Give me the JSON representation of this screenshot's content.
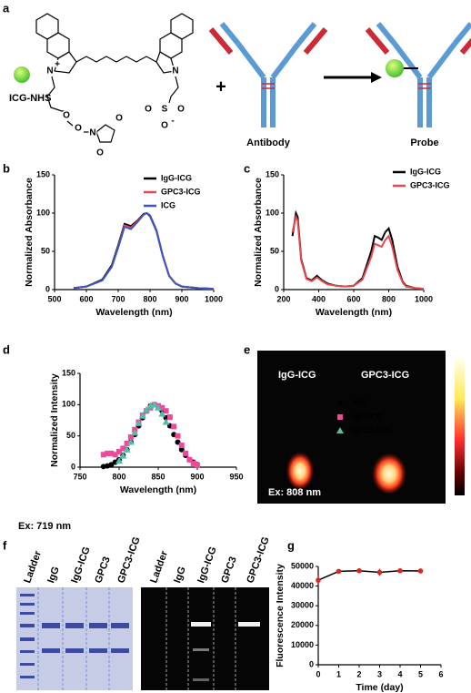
{
  "panel_labels": [
    "a",
    "b",
    "c",
    "d",
    "e",
    "f",
    "g"
  ],
  "scheme": {
    "reagent": "ICG-NHS",
    "plus": "+",
    "antibody": "Antibody",
    "probe": "Probe",
    "atoms": [
      "N",
      "+",
      "N",
      "O",
      "O",
      "N",
      "O",
      "O",
      "S",
      "O",
      "O",
      "O",
      "-"
    ]
  },
  "excitation_d": "Ex: 719 nm",
  "imaging": {
    "labels": [
      "IgG-ICG",
      "GPC3-ICG"
    ],
    "excitation": "Ex: 808 nm"
  },
  "gels": {
    "lanes_stain": [
      "Ladder",
      "IgG",
      "IgG-ICG",
      "GPC3",
      "GPC3-ICG"
    ],
    "lanes_fluor": [
      "Ladder",
      "IgG",
      "IgG-ICG",
      "GPC3",
      "GPC3-ICG"
    ]
  },
  "chart_data": [
    {
      "type": "line",
      "xlabel": "Wavelength (nm)",
      "ylabel": "Normalized Absorbance",
      "x": [
        560,
        600,
        650,
        680,
        700,
        720,
        740,
        760,
        780,
        790,
        800,
        820,
        840,
        860,
        880,
        900,
        950,
        1000
      ],
      "series": [
        {
          "name": "IgG-ICG",
          "color": "#000000",
          "values": [
            2,
            4,
            13,
            32,
            58,
            86,
            83,
            90,
            99,
            100,
            96,
            77,
            44,
            18,
            8,
            4,
            2,
            1
          ]
        },
        {
          "name": "GPC3-ICG",
          "color": "#e8474c",
          "values": [
            2,
            4,
            12,
            30,
            56,
            84,
            81,
            89,
            98,
            100,
            97,
            78,
            45,
            18,
            8,
            4,
            2,
            1
          ]
        },
        {
          "name": "ICG",
          "color": "#3a57c4",
          "values": [
            2,
            4,
            12,
            30,
            55,
            82,
            79,
            88,
            98,
            100,
            97,
            78,
            44,
            18,
            8,
            4,
            2,
            1
          ]
        }
      ],
      "xlim": [
        500,
        1000
      ],
      "xticks": [
        500,
        600,
        700,
        800,
        900,
        1000
      ],
      "ylim": [
        0,
        150
      ],
      "yticks": [
        0,
        50,
        100,
        150
      ]
    },
    {
      "type": "line",
      "xlabel": "Wavelength (nm)",
      "ylabel": "Normalized Absorbance",
      "x": [
        250,
        270,
        280,
        300,
        330,
        360,
        390,
        420,
        450,
        500,
        550,
        600,
        650,
        700,
        720,
        740,
        760,
        780,
        800,
        820,
        850,
        880,
        900,
        950,
        1000
      ],
      "series": [
        {
          "name": "IgG-ICG",
          "color": "#000000",
          "values": [
            70,
            100,
            95,
            40,
            15,
            12,
            18,
            12,
            8,
            5,
            4,
            5,
            15,
            50,
            70,
            68,
            65,
            75,
            80,
            65,
            30,
            10,
            5,
            2,
            1
          ]
        },
        {
          "name": "GPC3-ICG",
          "color": "#e8474c",
          "values": [
            75,
            95,
            90,
            38,
            14,
            11,
            16,
            11,
            7,
            5,
            4,
            5,
            13,
            43,
            60,
            58,
            56,
            65,
            70,
            56,
            26,
            9,
            4,
            2,
            1
          ]
        }
      ],
      "xlim": [
        200,
        1000
      ],
      "xticks": [
        200,
        400,
        600,
        800,
        1000
      ],
      "ylim": [
        0,
        150
      ],
      "yticks": [
        0,
        50,
        100,
        150
      ]
    },
    {
      "type": "scatter",
      "xlabel": "Wavelength (nm)",
      "ylabel": "Normalized Intensity",
      "x": [
        780,
        785,
        790,
        795,
        800,
        805,
        810,
        815,
        820,
        825,
        830,
        835,
        840,
        845,
        850,
        855,
        860,
        865,
        870,
        875,
        880,
        885,
        890,
        895,
        900
      ],
      "series": [
        {
          "name": "ICG",
          "color": "#000000",
          "marker": "circle",
          "values": [
            1,
            2,
            4,
            8,
            12,
            19,
            28,
            40,
            52,
            66,
            79,
            90,
            98,
            100,
            98,
            90,
            79,
            66,
            52,
            40,
            28,
            19,
            12,
            8,
            4
          ]
        },
        {
          "name": "IgG-ICG",
          "color": "#f0489a",
          "marker": "square",
          "values": [
            20,
            22,
            22,
            20,
            25,
            30,
            38,
            48,
            60,
            72,
            83,
            90,
            95,
            100,
            98,
            95,
            90,
            80,
            65,
            50,
            35,
            22,
            12,
            6,
            3
          ]
        },
        {
          "name": "GPC3-ICG",
          "color": "#4fbfa8",
          "marker": "triangle",
          "values": [
            null,
            null,
            null,
            null,
            10,
            18,
            28,
            40,
            55,
            70,
            82,
            92,
            98,
            100,
            95,
            85,
            72,
            null,
            null,
            null,
            null,
            null,
            null,
            null,
            null
          ]
        }
      ],
      "xlim": [
        750,
        950
      ],
      "xticks": [
        750,
        800,
        850,
        900,
        950
      ],
      "ylim": [
        0,
        150
      ],
      "yticks": [
        0,
        50,
        100,
        150
      ]
    },
    {
      "type": "line",
      "xlabel": "Time (day)",
      "ylabel": "Fluorescence Intensity",
      "x": [
        0,
        1,
        2,
        3,
        4,
        5
      ],
      "values": [
        43000,
        47500,
        47800,
        47000,
        47800,
        47700
      ],
      "errors": [
        2500,
        800,
        1000,
        1800,
        500,
        800
      ],
      "color": "#000000",
      "marker_color": "#d62728",
      "xlim": [
        0,
        6
      ],
      "xticks": [
        0,
        1,
        2,
        3,
        4,
        5,
        6
      ],
      "ylim": [
        0,
        50000
      ],
      "yticks": [
        0,
        10000,
        20000,
        30000,
        40000,
        50000
      ]
    }
  ]
}
